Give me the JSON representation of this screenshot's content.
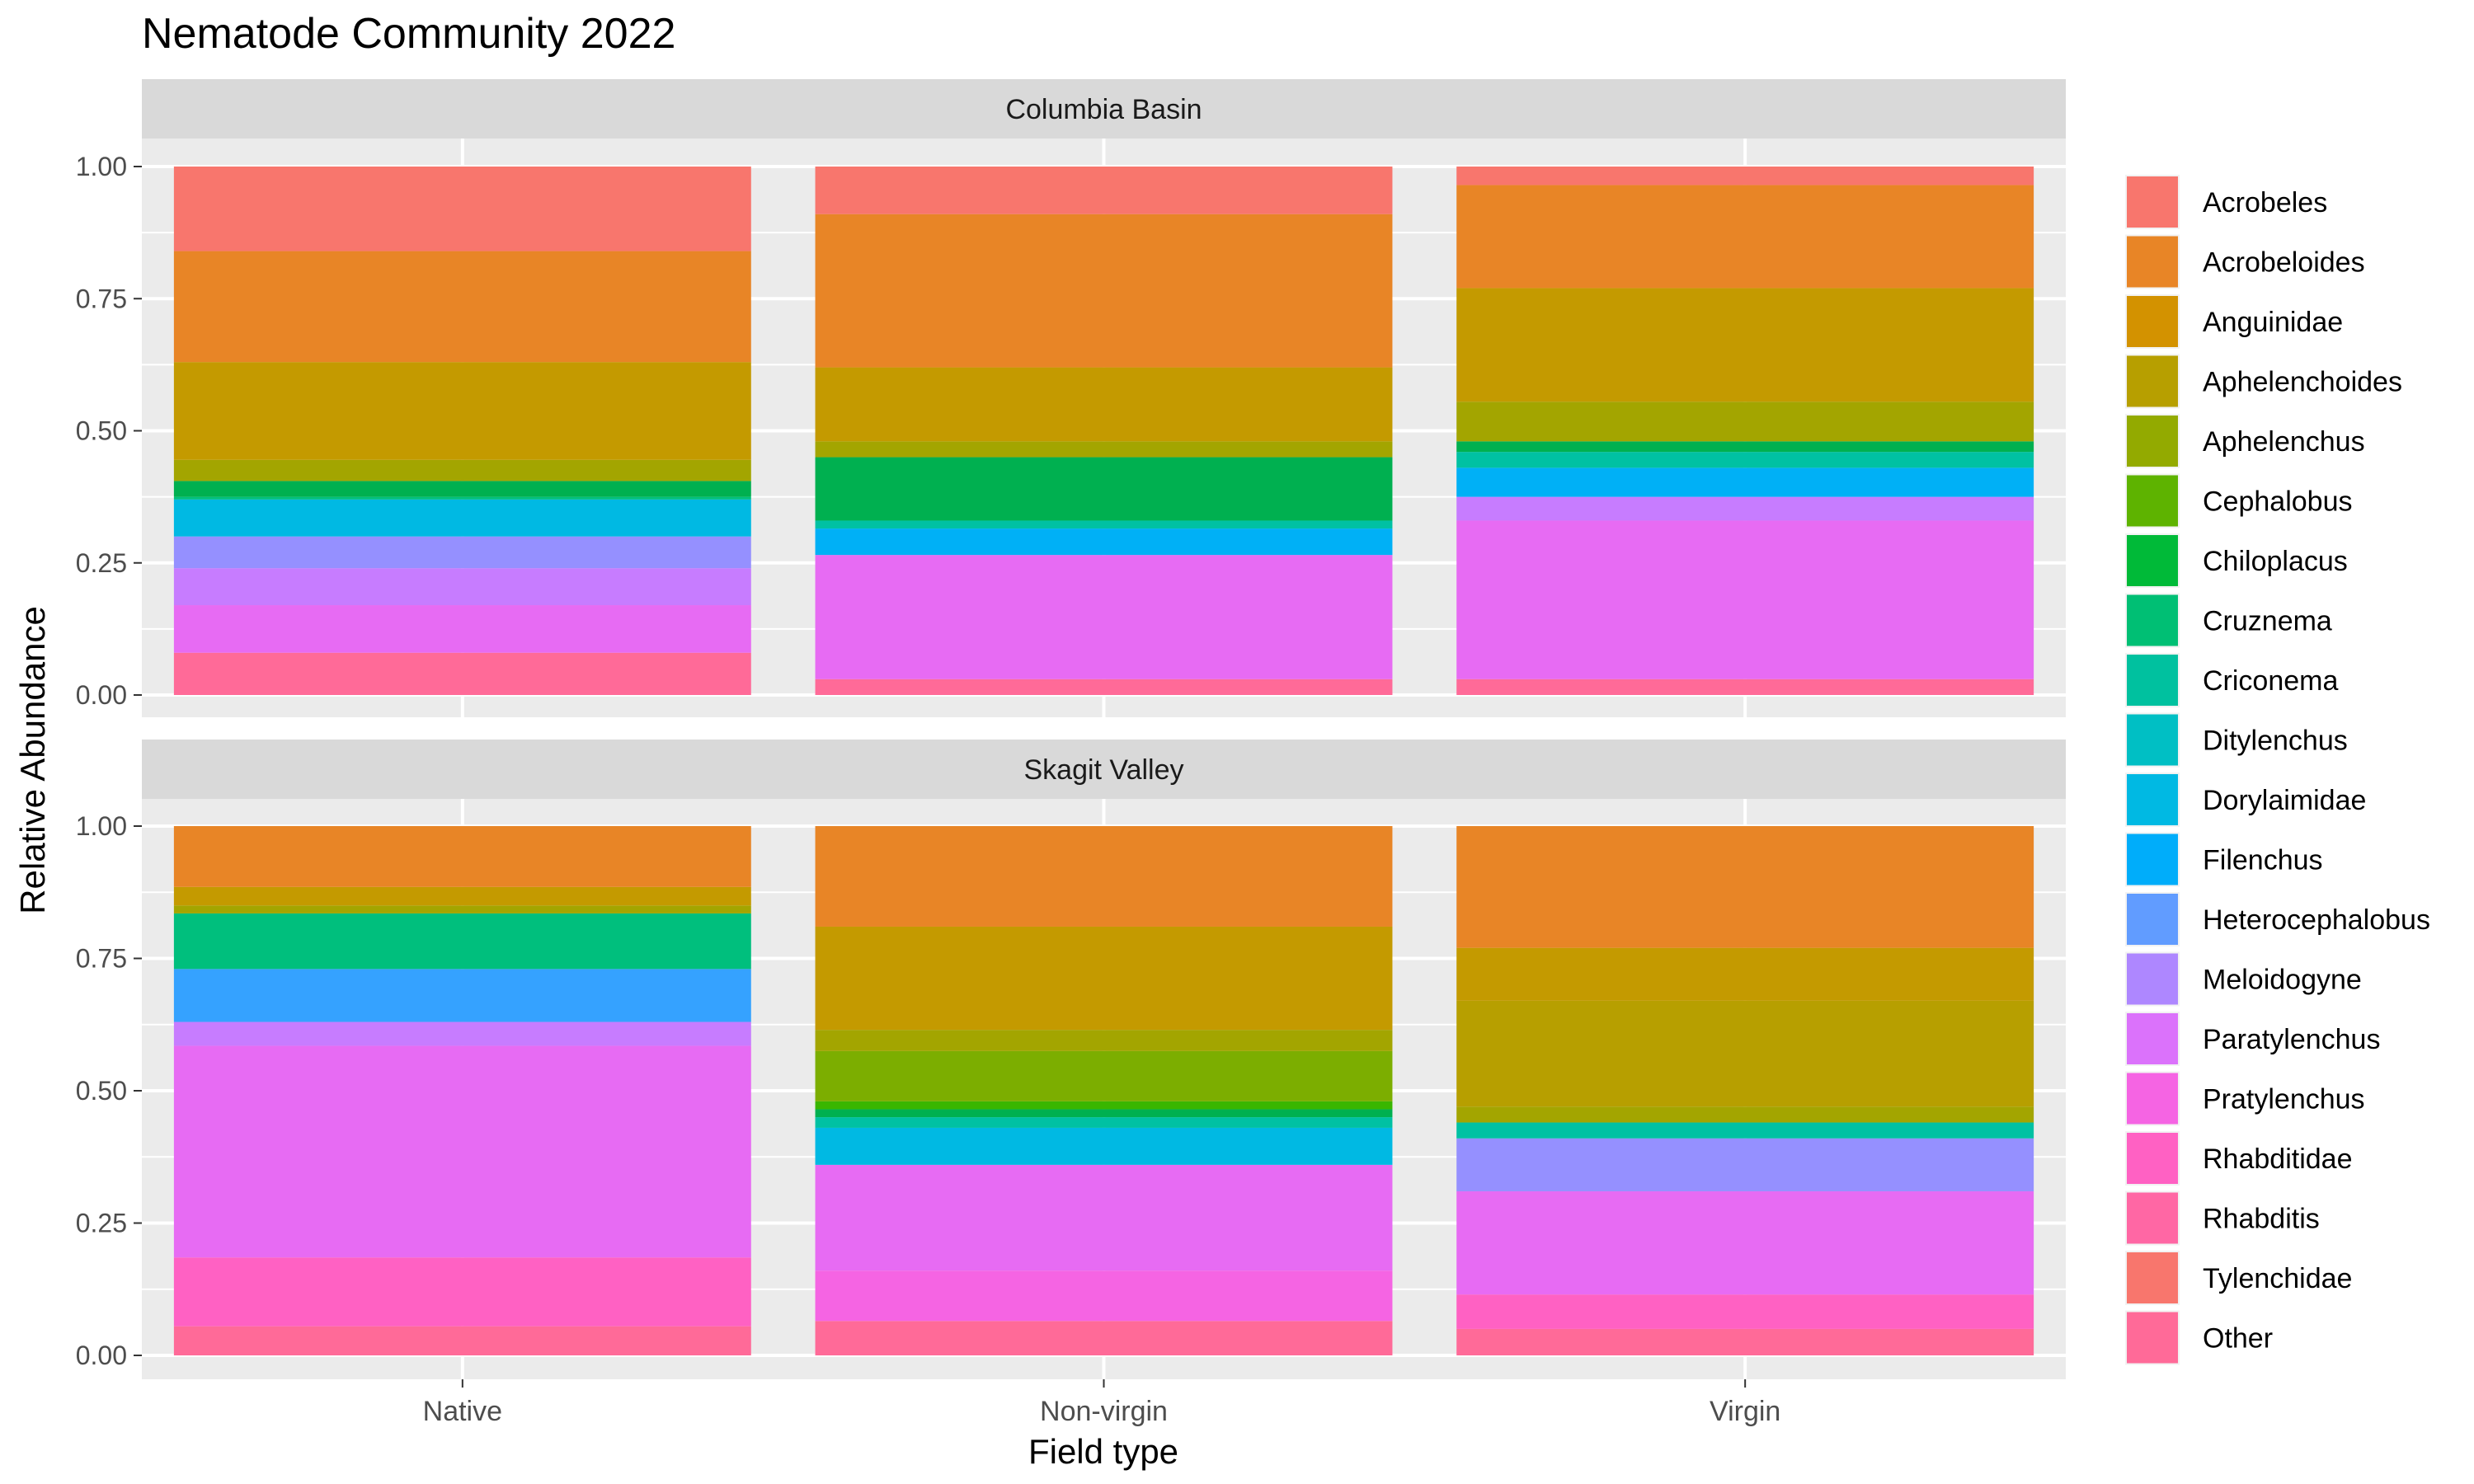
{
  "chart_data": {
    "type": "bar",
    "stacked": true,
    "title": "Nematode Community 2022",
    "xlabel": "Field type",
    "ylabel": "Relative Abundance",
    "categories": [
      "Native",
      "Non-virgin",
      "Virgin"
    ],
    "ylim": [
      0,
      1
    ],
    "yticks": [
      "0.00",
      "0.25",
      "0.50",
      "0.75",
      "1.00"
    ],
    "grid": true,
    "legend_position": "right",
    "legend": [
      {
        "name": "Acrobeles",
        "color": "#F8766D"
      },
      {
        "name": "Acrobeloides",
        "color": "#E88526"
      },
      {
        "name": "Anguinidae",
        "color": "#D39200"
      },
      {
        "name": "Aphelenchoides",
        "color": "#B79F00"
      },
      {
        "name": "Aphelenchus",
        "color": "#93AA00"
      },
      {
        "name": "Cephalobus",
        "color": "#5EB300"
      },
      {
        "name": "Chiloplacus",
        "color": "#00BA38"
      },
      {
        "name": "Cruznema",
        "color": "#00BF74"
      },
      {
        "name": "Criconema",
        "color": "#00C19F"
      },
      {
        "name": "Ditylenchus",
        "color": "#00BFC4"
      },
      {
        "name": "Dorylaimidae",
        "color": "#00B9E3"
      },
      {
        "name": "Filenchus",
        "color": "#00ADFA"
      },
      {
        "name": "Heterocephalobus",
        "color": "#619CFF"
      },
      {
        "name": "Meloidogyne",
        "color": "#AE87FF"
      },
      {
        "name": "Paratylenchus",
        "color": "#DB72FB"
      },
      {
        "name": "Pratylenchus",
        "color": "#F564E3"
      },
      {
        "name": "Rhabditidae",
        "color": "#FF61C3"
      },
      {
        "name": "Rhabditis",
        "color": "#FF67A4"
      },
      {
        "name": "Tylenchidae",
        "color": "#F8766D"
      },
      {
        "name": "Other",
        "color": "#FF6A98"
      }
    ],
    "panels": [
      {
        "title": "Columbia Basin",
        "bars": [
          {
            "category": "Native",
            "segments": [
              {
                "name": "Other",
                "value": 0.08,
                "color": "#FF6A98"
              },
              {
                "name": "Rhabditidae",
                "value": 0.09,
                "color": "#E76BF3"
              },
              {
                "name": "Pratylenchus",
                "value": 0.07,
                "color": "#C77CFF"
              },
              {
                "name": "Paratylenchus",
                "value": 0.06,
                "color": "#9590FF"
              },
              {
                "name": "Filenchus",
                "value": 0.07,
                "color": "#00B9E3"
              },
              {
                "name": "Criconema",
                "value": 0.005,
                "color": "#00BF7D"
              },
              {
                "name": "Cruznema",
                "value": 0.03,
                "color": "#00B050"
              },
              {
                "name": "Aphelenchus",
                "value": 0.04,
                "color": "#A3A500"
              },
              {
                "name": "Aphelenchoides",
                "value": 0.185,
                "color": "#C49A00"
              },
              {
                "name": "Acrobeloides",
                "value": 0.21,
                "color": "#E88526"
              },
              {
                "name": "Acrobeles",
                "value": 0.16,
                "color": "#F8766D"
              }
            ]
          },
          {
            "category": "Non-virgin",
            "segments": [
              {
                "name": "Other",
                "value": 0.03,
                "color": "#FF6A98"
              },
              {
                "name": "Rhabditidae",
                "value": 0.235,
                "color": "#E76BF3"
              },
              {
                "name": "Heterocephalobus",
                "value": 0.05,
                "color": "#00B0F6"
              },
              {
                "name": "Ditylenchus",
                "value": 0.015,
                "color": "#00C1A3"
              },
              {
                "name": "Cruznema",
                "value": 0.12,
                "color": "#00B050"
              },
              {
                "name": "Aphelenchus",
                "value": 0.03,
                "color": "#A3A500"
              },
              {
                "name": "Aphelenchoides",
                "value": 0.14,
                "color": "#C49A00"
              },
              {
                "name": "Acrobeloides",
                "value": 0.29,
                "color": "#E88526"
              },
              {
                "name": "Acrobeles",
                "value": 0.09,
                "color": "#F8766D"
              }
            ]
          },
          {
            "category": "Virgin",
            "segments": [
              {
                "name": "Other",
                "value": 0.03,
                "color": "#FF6A98"
              },
              {
                "name": "Rhabditidae",
                "value": 0.3,
                "color": "#E76BF3"
              },
              {
                "name": "Pratylenchus",
                "value": 0.045,
                "color": "#C77CFF"
              },
              {
                "name": "Heterocephalobus",
                "value": 0.055,
                "color": "#00B0F6"
              },
              {
                "name": "Ditylenchus",
                "value": 0.03,
                "color": "#00C1A3"
              },
              {
                "name": "Cruznema",
                "value": 0.02,
                "color": "#00B050"
              },
              {
                "name": "Aphelenchus",
                "value": 0.075,
                "color": "#A3A500"
              },
              {
                "name": "Aphelenchoides",
                "value": 0.215,
                "color": "#C49A00"
              },
              {
                "name": "Acrobeloides",
                "value": 0.195,
                "color": "#E88526"
              },
              {
                "name": "Acrobeles",
                "value": 0.035,
                "color": "#F8766D"
              }
            ]
          }
        ]
      },
      {
        "title": "Skagit Valley",
        "bars": [
          {
            "category": "Native",
            "segments": [
              {
                "name": "Other",
                "value": 0.055,
                "color": "#FF6A98"
              },
              {
                "name": "Tylenchidae",
                "value": 0.13,
                "color": "#FF61C3"
              },
              {
                "name": "Rhabditidae",
                "value": 0.4,
                "color": "#E76BF3"
              },
              {
                "name": "Pratylenchus",
                "value": 0.045,
                "color": "#C77CFF"
              },
              {
                "name": "Meloidogyne",
                "value": 0.1,
                "color": "#35A2FF"
              },
              {
                "name": "Criconema",
                "value": 0.105,
                "color": "#00BF7D"
              },
              {
                "name": "Aphelenchus",
                "value": 0.015,
                "color": "#A3A500"
              },
              {
                "name": "Aphelenchoides",
                "value": 0.035,
                "color": "#C49A00"
              },
              {
                "name": "Acrobeloides",
                "value": 0.115,
                "color": "#E88526"
              }
            ]
          },
          {
            "category": "Non-virgin",
            "segments": [
              {
                "name": "Other",
                "value": 0.065,
                "color": "#FF6A98"
              },
              {
                "name": "Rhabditis",
                "value": 0.095,
                "color": "#F564E3"
              },
              {
                "name": "Rhabditidae",
                "value": 0.2,
                "color": "#E76BF3"
              },
              {
                "name": "Filenchus",
                "value": 0.07,
                "color": "#00B9E3"
              },
              {
                "name": "Ditylenchus",
                "value": 0.02,
                "color": "#00C1A3"
              },
              {
                "name": "Cruznema",
                "value": 0.015,
                "color": "#00B050"
              },
              {
                "name": "Chiloplacus",
                "value": 0.015,
                "color": "#39B600"
              },
              {
                "name": "Cephalobus",
                "value": 0.095,
                "color": "#7CAE00"
              },
              {
                "name": "Aphelenchus",
                "value": 0.04,
                "color": "#A3A500"
              },
              {
                "name": "Aphelenchoides",
                "value": 0.195,
                "color": "#C49A00"
              },
              {
                "name": "Acrobeloides",
                "value": 0.19,
                "color": "#E88526"
              }
            ]
          },
          {
            "category": "Virgin",
            "segments": [
              {
                "name": "Other",
                "value": 0.05,
                "color": "#FF6A98"
              },
              {
                "name": "Tylenchidae",
                "value": 0.065,
                "color": "#FF61C3"
              },
              {
                "name": "Rhabditidae",
                "value": 0.195,
                "color": "#E76BF3"
              },
              {
                "name": "Paratylenchus",
                "value": 0.1,
                "color": "#9590FF"
              },
              {
                "name": "Ditylenchus",
                "value": 0.03,
                "color": "#00C1A3"
              },
              {
                "name": "Aphelenchus",
                "value": 0.03,
                "color": "#A3A500"
              },
              {
                "name": "Aphelenchoides",
                "value": 0.2,
                "color": "#B79F00"
              },
              {
                "name": "Aphelenchoides",
                "value": 0.1,
                "color": "#C49A00"
              },
              {
                "name": "Acrobeloides",
                "value": 0.23,
                "color": "#E88526"
              }
            ]
          }
        ]
      }
    ]
  }
}
